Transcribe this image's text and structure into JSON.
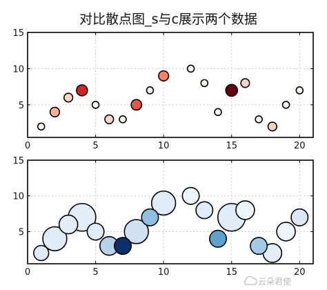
{
  "title": "对比散点图_s与c展示两个数据",
  "watermark": "云朵君使",
  "chart_data": [
    {
      "type": "scatter",
      "panel": "top",
      "encoding": "marker size and color both vary with c (Reds colormap)",
      "x": [
        1,
        2,
        3,
        4,
        5,
        6,
        7,
        8,
        9,
        10,
        12,
        13,
        14,
        15,
        16,
        17,
        18,
        19,
        20
      ],
      "y": [
        2,
        4,
        6,
        7,
        5,
        3,
        3,
        5,
        7,
        9,
        10,
        8,
        4,
        7,
        8,
        3,
        2,
        5,
        7
      ],
      "c": [
        0,
        2,
        1,
        5,
        0,
        1,
        0,
        4,
        0,
        3,
        0,
        0,
        0,
        7,
        1,
        0,
        1,
        0,
        0
      ],
      "xlim": [
        0,
        21
      ],
      "ylim": [
        0.5,
        15
      ],
      "xticks": [
        0,
        5,
        10,
        15,
        20
      ],
      "yticks": [
        5,
        10,
        15
      ],
      "grid": true,
      "cmap": [
        "#fff5f0",
        "#fcbba1",
        "#fb6a4a",
        "#cb181d",
        "#67000d"
      ],
      "edge_color": "#000000"
    },
    {
      "type": "scatter",
      "panel": "bottom",
      "encoding": "marker size s and color c (Blues colormap) vary independently",
      "x": [
        1,
        2,
        3,
        4,
        5,
        6,
        7,
        8,
        9,
        10,
        12,
        13,
        14,
        15,
        16,
        17,
        18,
        19,
        20
      ],
      "y": [
        2,
        4,
        6,
        7,
        5,
        3,
        3,
        5,
        7,
        9,
        10,
        8,
        4,
        7,
        8,
        3,
        2,
        5,
        7
      ],
      "s": [
        0.3,
        0.8,
        0.5,
        1.0,
        0.4,
        0.5,
        0.4,
        0.8,
        0.4,
        0.8,
        0.4,
        0.4,
        0.4,
        1.0,
        0.5,
        0.4,
        0.5,
        0.5,
        0.4
      ],
      "c": [
        0.12,
        0.12,
        0.1,
        0.1,
        0.12,
        0.3,
        1.0,
        0.2,
        0.4,
        0.12,
        0.05,
        0.12,
        0.55,
        0.12,
        0.05,
        0.35,
        0.1,
        0.05,
        0.15
      ],
      "xlim": [
        0,
        21
      ],
      "ylim": [
        0.5,
        15
      ],
      "xticks": [
        0,
        5,
        10,
        15,
        20
      ],
      "yticks": [
        5,
        10,
        15
      ],
      "grid": true,
      "cmap": [
        "#f7fbff",
        "#c6dbef",
        "#6baed6",
        "#2171b5",
        "#08306b"
      ],
      "edge_color": "#000000"
    }
  ]
}
